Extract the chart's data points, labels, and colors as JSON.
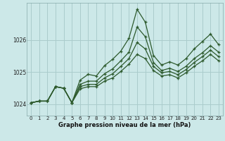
{
  "title": "Graphe pression niveau de la mer (hPa)",
  "bg_color": "#cce8e8",
  "grid_color": "#aacccc",
  "line_color": "#2d5a2d",
  "xlim": [
    -0.5,
    23.5
  ],
  "ylim": [
    1023.65,
    1027.15
  ],
  "yticks": [
    1024,
    1025,
    1026
  ],
  "xticks": [
    0,
    1,
    2,
    3,
    4,
    5,
    6,
    7,
    8,
    9,
    10,
    11,
    12,
    13,
    14,
    15,
    16,
    17,
    18,
    19,
    20,
    21,
    22,
    23
  ],
  "series": [
    [
      1024.05,
      1024.1,
      1024.1,
      1024.55,
      1024.5,
      1024.05,
      1024.75,
      1024.93,
      1024.88,
      1025.2,
      1025.4,
      1025.65,
      1026.05,
      1026.95,
      1026.55,
      1025.52,
      1025.22,
      1025.32,
      1025.22,
      1025.42,
      1025.72,
      1025.95,
      1026.18,
      1025.85
    ],
    [
      1024.05,
      1024.1,
      1024.1,
      1024.55,
      1024.5,
      1024.05,
      1024.62,
      1024.72,
      1024.72,
      1024.95,
      1025.1,
      1025.35,
      1025.62,
      1026.4,
      1026.1,
      1025.3,
      1025.05,
      1025.12,
      1025.02,
      1025.18,
      1025.42,
      1025.6,
      1025.82,
      1025.62
    ],
    [
      1024.05,
      1024.1,
      1024.1,
      1024.55,
      1024.5,
      1024.05,
      1024.55,
      1024.62,
      1024.62,
      1024.82,
      1024.95,
      1025.18,
      1025.42,
      1025.92,
      1025.72,
      1025.18,
      1024.98,
      1025.02,
      1024.92,
      1025.08,
      1025.3,
      1025.48,
      1025.68,
      1025.48
    ],
    [
      1024.05,
      1024.1,
      1024.1,
      1024.55,
      1024.5,
      1024.05,
      1024.48,
      1024.55,
      1024.55,
      1024.72,
      1024.82,
      1025.02,
      1025.25,
      1025.55,
      1025.42,
      1025.05,
      1024.88,
      1024.92,
      1024.82,
      1024.98,
      1025.18,
      1025.35,
      1025.55,
      1025.35
    ]
  ]
}
